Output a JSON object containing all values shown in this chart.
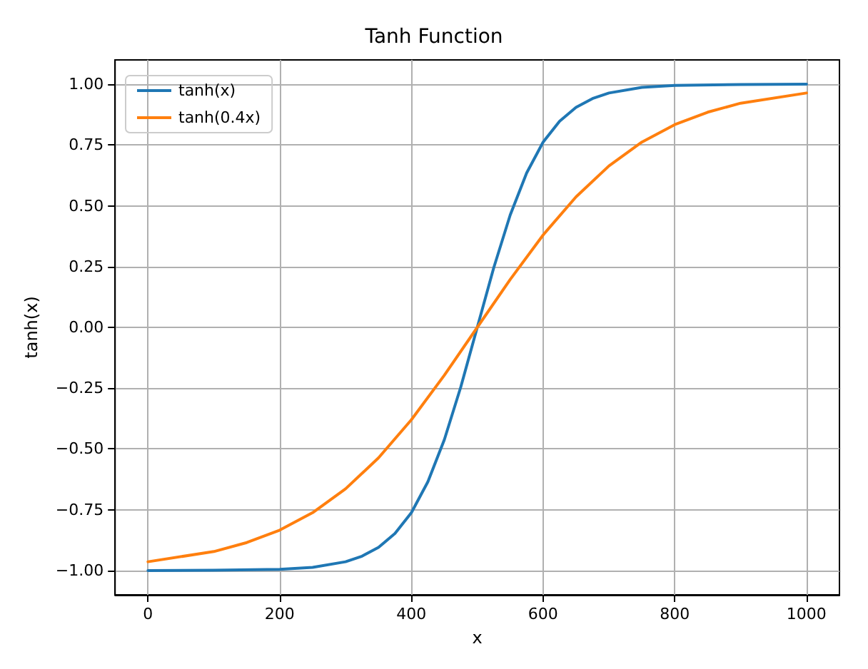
{
  "chart_data": {
    "type": "line",
    "title": "Tanh Function",
    "xlabel": "x",
    "ylabel": "tanh(x)",
    "xlim": [
      -50,
      1050
    ],
    "xticks": [
      0,
      200,
      400,
      600,
      800,
      1000
    ],
    "ylim": [
      -1.1,
      1.1
    ],
    "yticks": [
      {
        "value": -1,
        "label": "−1.00"
      },
      {
        "value": -0.75,
        "label": "−0.75"
      },
      {
        "value": -0.5,
        "label": "−0.50"
      },
      {
        "value": -0.25,
        "label": "−0.25"
      },
      {
        "value": 0,
        "label": "0.00"
      },
      {
        "value": 0.25,
        "label": "0.25"
      },
      {
        "value": 0.5,
        "label": "0.50"
      },
      {
        "value": 0.75,
        "label": "0.75"
      },
      {
        "value": 1,
        "label": "1.00"
      }
    ],
    "grid": true,
    "legend": "top left",
    "marker": "none",
    "line_style": "solid",
    "series": [
      {
        "name": "tanh(x)",
        "color": "#1f77b4",
        "x": [
          0,
          100,
          200,
          250,
          300,
          325,
          350,
          375,
          400,
          425,
          450,
          475,
          500,
          525,
          550,
          575,
          600,
          625,
          650,
          675,
          700,
          750,
          800,
          900,
          1000
        ],
        "values": [
          -1.0,
          -0.999,
          -0.995,
          -0.987,
          -0.964,
          -0.941,
          -0.905,
          -0.848,
          -0.762,
          -0.635,
          -0.462,
          -0.245,
          0,
          0.245,
          0.462,
          0.635,
          0.762,
          0.848,
          0.905,
          0.941,
          0.964,
          0.987,
          0.995,
          0.999,
          1.0
        ]
      },
      {
        "name": "tanh(0.4x)",
        "color": "#ff7f0e",
        "x": [
          0,
          100,
          150,
          200,
          250,
          300,
          350,
          400,
          450,
          500,
          550,
          600,
          650,
          700,
          750,
          800,
          850,
          900,
          1000
        ],
        "values": [
          -0.964,
          -0.922,
          -0.885,
          -0.834,
          -0.762,
          -0.664,
          -0.537,
          -0.38,
          -0.197,
          0,
          0.197,
          0.38,
          0.537,
          0.664,
          0.762,
          0.834,
          0.885,
          0.922,
          0.964
        ]
      }
    ]
  }
}
